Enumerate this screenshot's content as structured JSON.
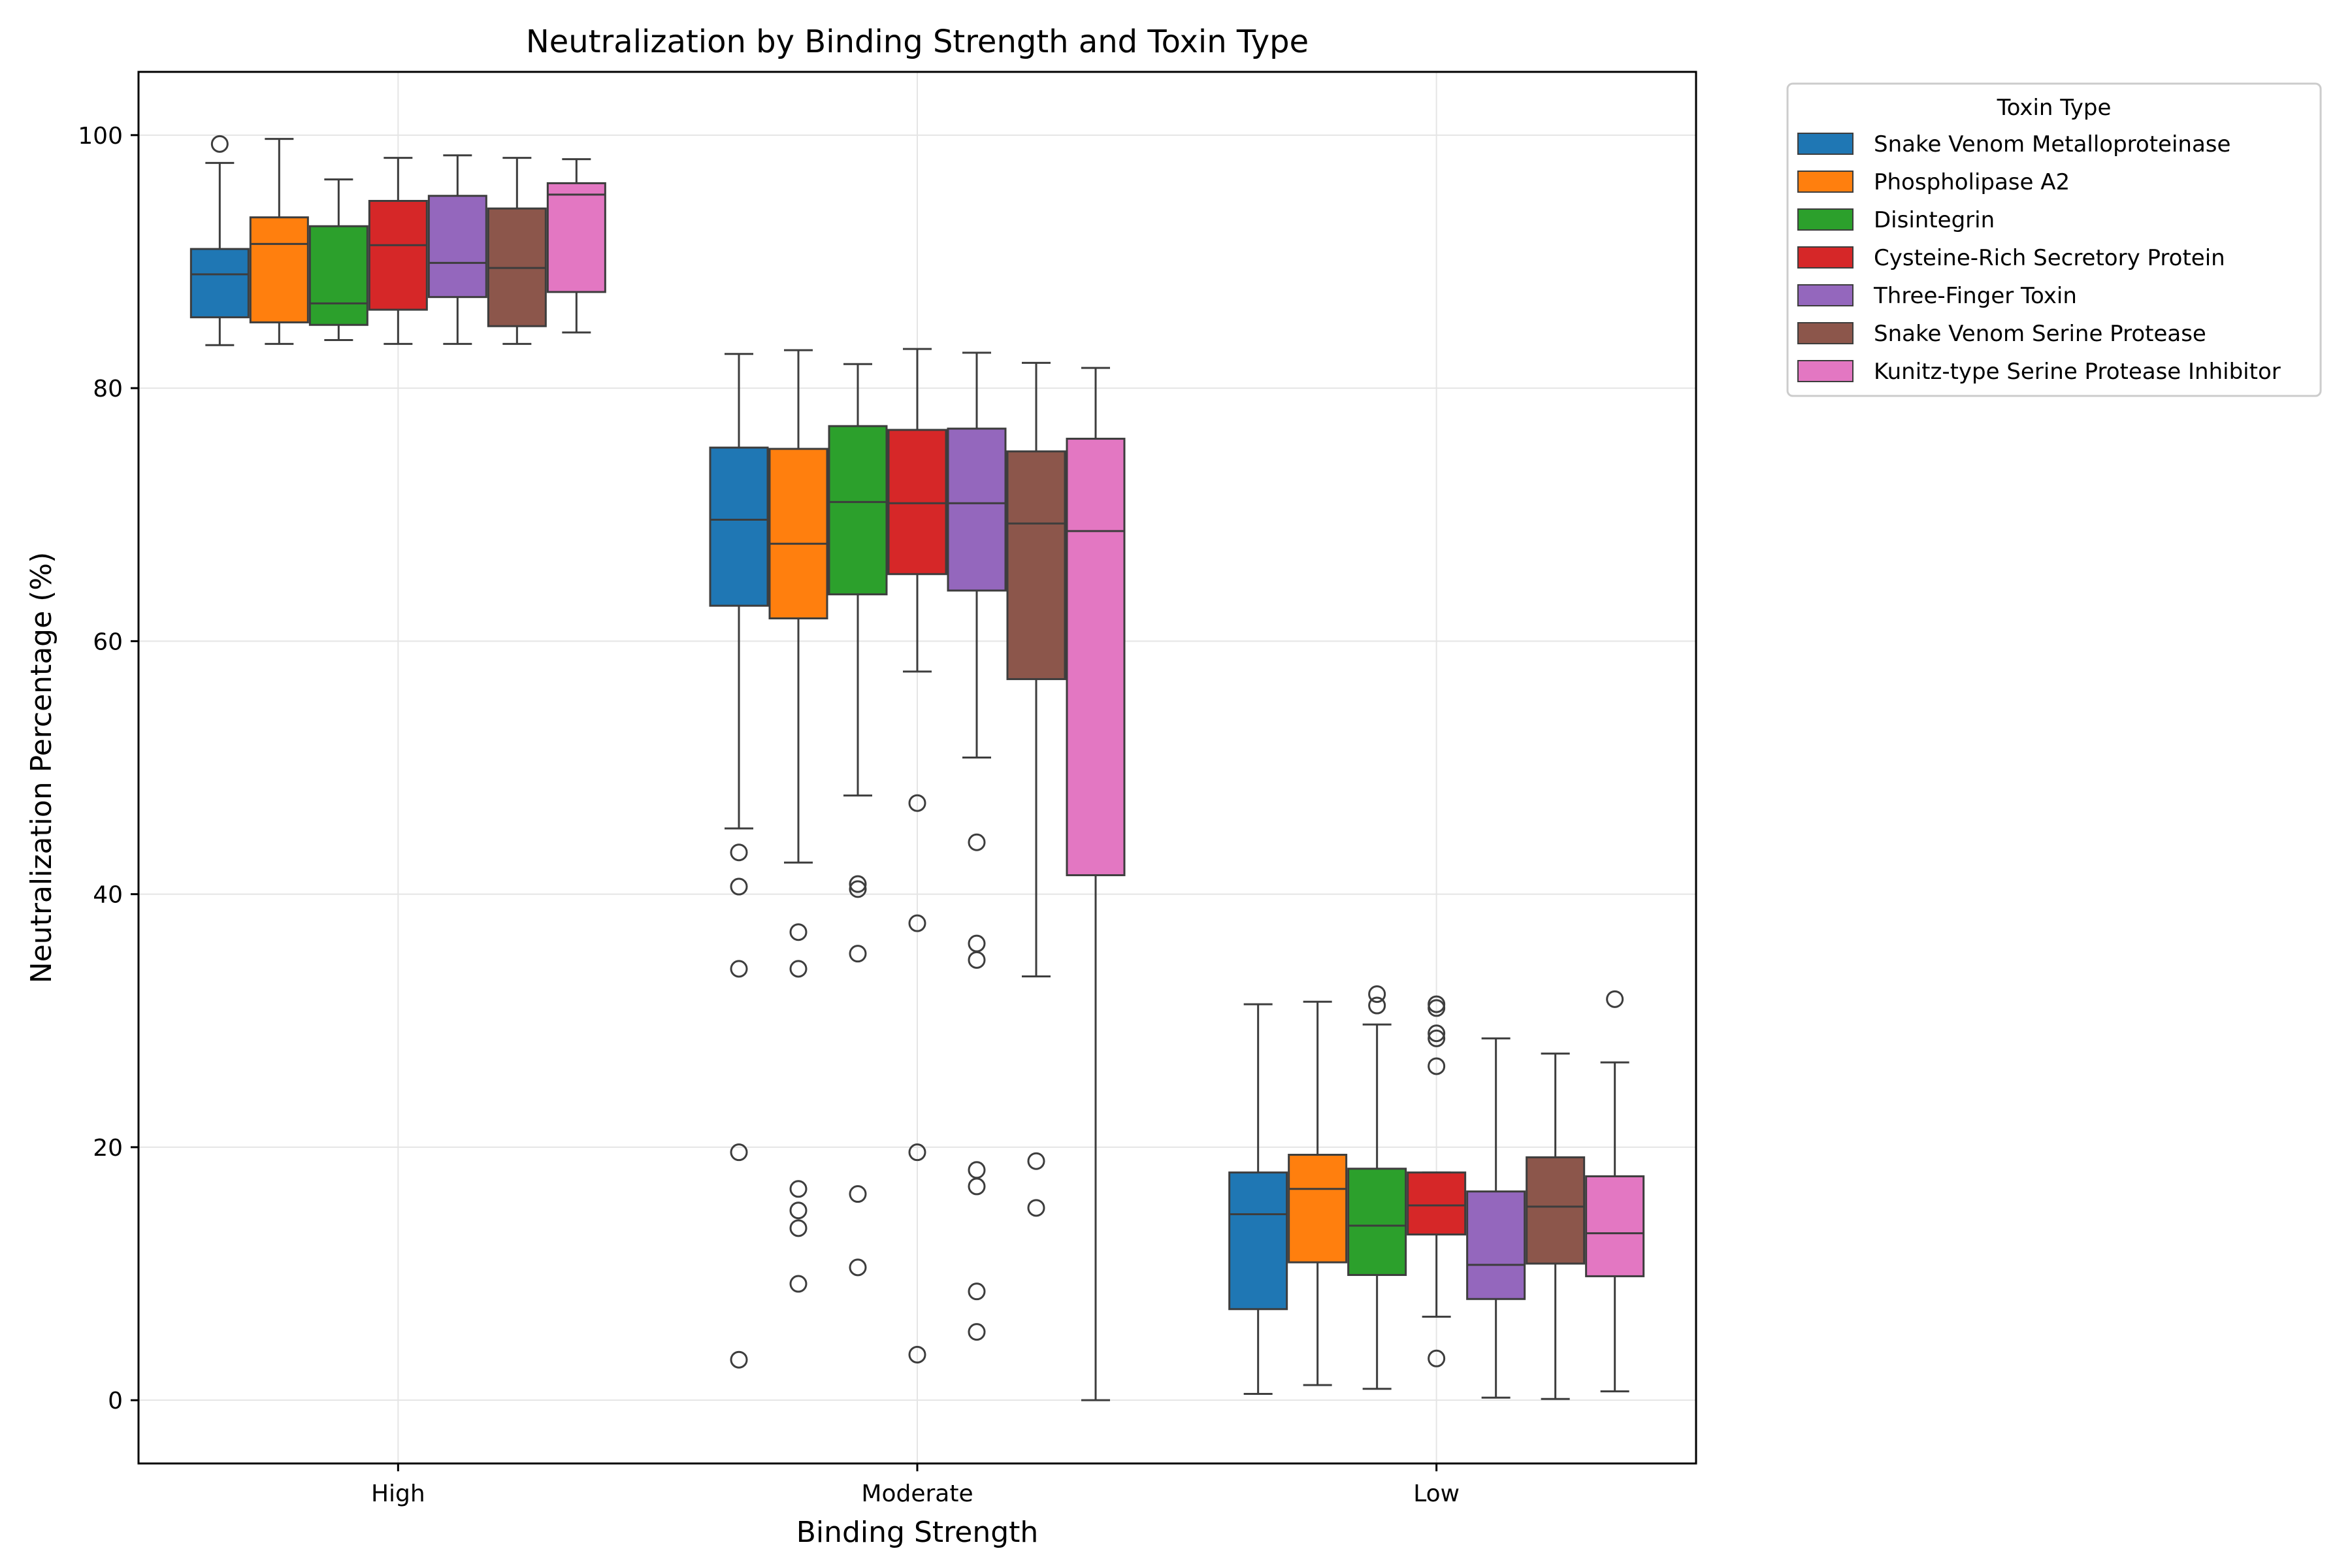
{
  "chart_data": {
    "type": "box",
    "title": "Neutralization by Binding Strength and Toxin Type",
    "xlabel": "Binding Strength",
    "ylabel": "Neutralization Percentage (%)",
    "ylim": [
      -5,
      105
    ],
    "yticks": [
      0,
      20,
      40,
      60,
      80,
      100
    ],
    "grid": true,
    "legend": {
      "title": "Toxin Type",
      "placement": "outside-top-right"
    },
    "categories": [
      "High",
      "Moderate",
      "Low"
    ],
    "series": [
      {
        "name": "Snake Venom Metalloproteinase",
        "color": "#1f77b4",
        "boxes": [
          {
            "min": 83.4,
            "q1": 85.6,
            "median": 89.0,
            "q3": 91.0,
            "max": 97.8,
            "outliers": [
              99.3
            ]
          },
          {
            "min": 45.2,
            "q1": 62.8,
            "median": 69.6,
            "q3": 75.3,
            "max": 82.7,
            "outliers": [
              43.3,
              40.6,
              34.1,
              19.6,
              3.2
            ]
          },
          {
            "min": 0.5,
            "q1": 7.2,
            "median": 14.7,
            "q3": 18.0,
            "max": 31.3,
            "outliers": []
          }
        ]
      },
      {
        "name": "Phospholipase A2",
        "color": "#ff7f0e",
        "boxes": [
          {
            "min": 83.5,
            "q1": 85.2,
            "median": 91.4,
            "q3": 93.5,
            "max": 99.7,
            "outliers": []
          },
          {
            "min": 42.5,
            "q1": 61.8,
            "median": 67.7,
            "q3": 75.2,
            "max": 83.0,
            "outliers": [
              37.0,
              34.1,
              16.7,
              15.0,
              13.6,
              9.2
            ]
          },
          {
            "min": 1.2,
            "q1": 10.9,
            "median": 16.7,
            "q3": 19.4,
            "max": 31.5,
            "outliers": []
          }
        ]
      },
      {
        "name": "Disintegrin",
        "color": "#2ca02c",
        "boxes": [
          {
            "min": 83.8,
            "q1": 85.0,
            "median": 86.7,
            "q3": 92.8,
            "max": 96.5,
            "outliers": []
          },
          {
            "min": 47.8,
            "q1": 63.7,
            "median": 71.0,
            "q3": 77.0,
            "max": 81.9,
            "outliers": [
              40.8,
              40.4,
              35.3,
              16.3,
              10.5
            ]
          },
          {
            "min": 0.9,
            "q1": 9.9,
            "median": 13.8,
            "q3": 18.3,
            "max": 29.7,
            "outliers": [
              32.1,
              31.2
            ]
          }
        ]
      },
      {
        "name": "Cysteine-Rich Secretory Protein",
        "color": "#d62728",
        "boxes": [
          {
            "min": 83.5,
            "q1": 86.2,
            "median": 91.3,
            "q3": 94.8,
            "max": 98.2,
            "outliers": []
          },
          {
            "min": 57.6,
            "q1": 65.3,
            "median": 70.9,
            "q3": 76.7,
            "max": 83.1,
            "outliers": [
              47.2,
              37.7,
              19.6,
              3.6
            ]
          },
          {
            "min": 6.6,
            "q1": 13.1,
            "median": 15.4,
            "q3": 18.0,
            "max": 18.0,
            "outliers": [
              31.3,
              31.0,
              29.0,
              28.6,
              26.4,
              3.3
            ]
          }
        ]
      },
      {
        "name": "Three-Finger Toxin",
        "color": "#9467bd",
        "boxes": [
          {
            "min": 83.5,
            "q1": 87.2,
            "median": 89.9,
            "q3": 95.2,
            "max": 98.4,
            "outliers": []
          },
          {
            "min": 50.8,
            "q1": 64.0,
            "median": 70.9,
            "q3": 76.8,
            "max": 82.8,
            "outliers": [
              44.1,
              36.1,
              34.8,
              18.2,
              16.9,
              8.6,
              5.4
            ]
          },
          {
            "min": 0.2,
            "q1": 8.0,
            "median": 10.7,
            "q3": 16.5,
            "max": 28.6,
            "outliers": []
          }
        ]
      },
      {
        "name": "Snake Venom Serine Protease",
        "color": "#8c564b",
        "boxes": [
          {
            "min": 83.5,
            "q1": 84.9,
            "median": 89.5,
            "q3": 94.2,
            "max": 98.2,
            "outliers": []
          },
          {
            "min": 33.5,
            "q1": 57.0,
            "median": 69.3,
            "q3": 75.0,
            "max": 82.0,
            "outliers": [
              18.9,
              15.2
            ]
          },
          {
            "min": 0.1,
            "q1": 10.8,
            "median": 15.3,
            "q3": 19.2,
            "max": 27.4,
            "outliers": []
          }
        ]
      },
      {
        "name": "Kunitz-type Serine Protease Inhibitor",
        "color": "#e377c2",
        "boxes": [
          {
            "min": 84.4,
            "q1": 87.6,
            "median": 95.3,
            "q3": 96.2,
            "max": 98.1,
            "outliers": []
          },
          {
            "min": 0.0,
            "q1": 41.5,
            "median": 68.7,
            "q3": 76.0,
            "max": 81.6,
            "outliers": []
          },
          {
            "min": 0.7,
            "q1": 9.8,
            "median": 13.2,
            "q3": 17.7,
            "max": 26.7,
            "outliers": [
              31.7
            ]
          }
        ]
      }
    ]
  }
}
